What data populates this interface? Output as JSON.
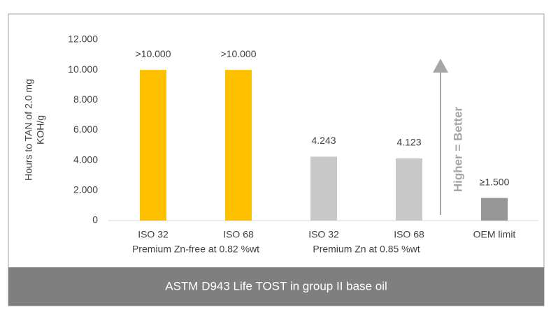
{
  "chart_data": {
    "type": "bar",
    "categories": [
      "ISO 32",
      "ISO 68",
      "ISO 32",
      "ISO 68",
      "OEM limit"
    ],
    "groups": [
      "Premium Zn-free at 0.82 %wt",
      "Premium Zn at 0.85 %wt"
    ],
    "values": [
      10000,
      10000,
      4243,
      4123,
      1500
    ],
    "value_labels": [
      ">10.000",
      ">10.000",
      "4.243",
      "4.123",
      "≥1.500"
    ],
    "colors": [
      "#ffc000",
      "#ffc000",
      "#c8c8c8",
      "#c8c8c8",
      "#969696"
    ],
    "ylabel": [
      "Hours to TAN of 2.0 mg",
      "KOH/g"
    ],
    "ylim": [
      0,
      12000
    ],
    "yticks": [
      0,
      {
        "value": 2000,
        "label": "2.000"
      },
      {
        "value": 4000,
        "label": "4.000"
      },
      {
        "value": 6000,
        "label": "6.000"
      },
      {
        "value": 8000,
        "label": "8.000"
      },
      {
        "value": 10000,
        "label": "10.000"
      },
      {
        "value": 12000,
        "label": "12.000"
      }
    ],
    "grid": false,
    "annotation": "Higher = Better",
    "footer": "ASTM D943 Life TOST in group II base oil"
  }
}
